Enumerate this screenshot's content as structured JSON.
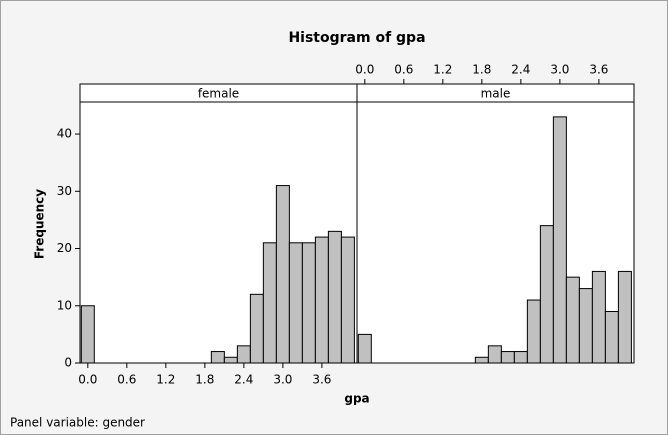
{
  "chart_data": {
    "type": "histogram",
    "title": "Histogram of gpa",
    "xlabel": "gpa",
    "ylabel": "Frequency",
    "footnote": "Panel variable: gender",
    "color": "#c0c0c0",
    "bins": [
      -0.1,
      0.1,
      0.3,
      0.5,
      0.7,
      0.9,
      1.1,
      1.3,
      1.5,
      1.7,
      1.9,
      2.1,
      2.3,
      2.5,
      2.7,
      2.9,
      3.1,
      3.3,
      3.5,
      3.7,
      3.9,
      4.1
    ],
    "panels": [
      {
        "name": "female",
        "counts": [
          10,
          0,
          0,
          0,
          0,
          0,
          0,
          0,
          0,
          0,
          2,
          1,
          3,
          12,
          21,
          31,
          21,
          21,
          22,
          23,
          22
        ]
      },
      {
        "name": "male",
        "counts": [
          5,
          0,
          0,
          0,
          0,
          0,
          0,
          0,
          0,
          1,
          3,
          2,
          2,
          11,
          24,
          43,
          15,
          13,
          16,
          9,
          16
        ]
      }
    ],
    "xlim": [
      -0.12,
      4.14
    ],
    "ylim": [
      0,
      45.6
    ],
    "xticks": [
      {
        "value": 0,
        "label": "0.0"
      },
      0.6,
      1.2,
      1.8,
      2.4,
      {
        "value": 3,
        "label": "3.0"
      },
      3.6
    ],
    "yticks": [
      0,
      10,
      20,
      30,
      40
    ]
  }
}
